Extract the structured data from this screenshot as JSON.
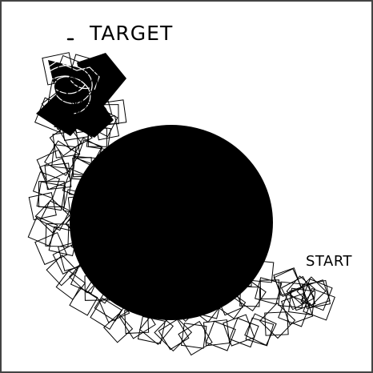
{
  "labels": {
    "target": "TARGET",
    "start": "START"
  },
  "colors": {
    "ink": "#000000",
    "paper": "#ffffff",
    "border": "#444444"
  }
}
